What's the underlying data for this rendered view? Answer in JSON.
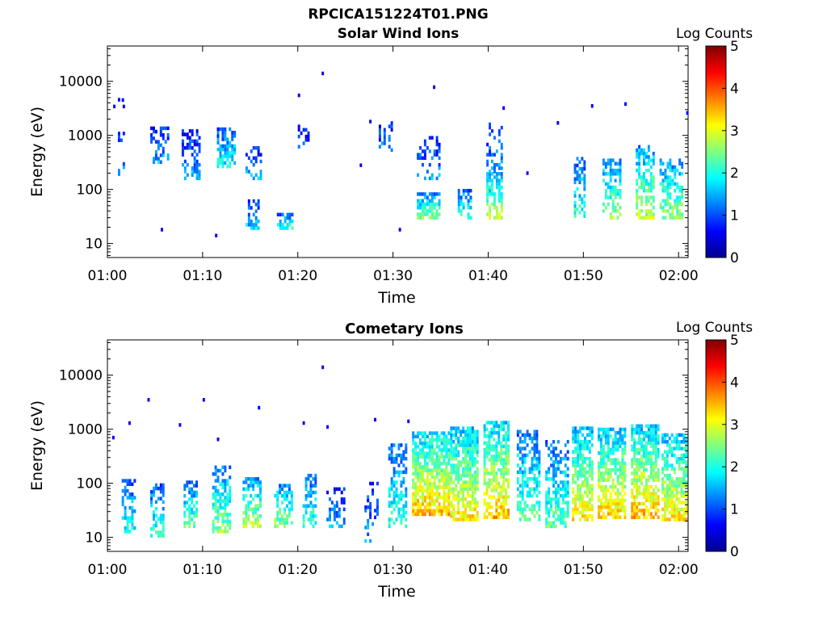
{
  "figure": {
    "title": "RPCICA151224T01.PNG"
  },
  "chart_data": [
    {
      "type": "heatmap",
      "title": "Solar Wind Ions",
      "xlabel": "Time",
      "ylabel": "Energy (eV)",
      "x_tick_labels": [
        "01:00",
        "01:10",
        "01:20",
        "01:30",
        "01:40",
        "01:50",
        "02:00"
      ],
      "y_tick_labels": [
        "10",
        "100",
        "1000",
        "10000"
      ],
      "y_scale": "log",
      "xlim_minutes": [
        0,
        61
      ],
      "ylim_ev": [
        5.5,
        45000
      ],
      "grid": false,
      "colorbar": {
        "label": "Log Counts",
        "ticks": [
          "0",
          "1",
          "2",
          "3",
          "4",
          "5"
        ],
        "range": [
          0,
          5
        ],
        "colormap": "jet"
      },
      "bursts": [
        {
          "t": [
            0.6,
            1.8
          ],
          "e": [
            180,
            4500
          ],
          "level": 0.25,
          "density": 0.15
        },
        {
          "t": [
            4.5,
            6.5
          ],
          "e": [
            300,
            1300
          ],
          "level": 0.3,
          "density": 0.45
        },
        {
          "t": [
            7.8,
            9.8
          ],
          "e": [
            150,
            1200
          ],
          "level": 0.3,
          "density": 0.5
        },
        {
          "t": [
            11.5,
            13.5
          ],
          "e": [
            250,
            1400
          ],
          "level": 0.4,
          "density": 0.6
        },
        {
          "t": [
            14.5,
            16.2
          ],
          "e": [
            150,
            600
          ],
          "level": 0.3,
          "density": 0.4
        },
        {
          "t": [
            14.5,
            15.8
          ],
          "e": [
            18,
            60
          ],
          "level": 0.35,
          "density": 0.5
        },
        {
          "t": [
            17.8,
            19.5
          ],
          "e": [
            18,
            35
          ],
          "level": 0.45,
          "density": 0.7
        },
        {
          "t": [
            20.0,
            21.2
          ],
          "e": [
            500,
            1500
          ],
          "level": 0.25,
          "density": 0.3
        },
        {
          "t": [
            28.5,
            30.0
          ],
          "e": [
            500,
            1800
          ],
          "level": 0.25,
          "density": 0.3
        },
        {
          "t": [
            32.5,
            35.0
          ],
          "e": [
            28,
            80
          ],
          "level": 0.55,
          "density": 0.7
        },
        {
          "t": [
            32.5,
            35.0
          ],
          "e": [
            150,
            900
          ],
          "level": 0.3,
          "density": 0.25
        },
        {
          "t": [
            36.8,
            38.3
          ],
          "e": [
            28,
            100
          ],
          "level": 0.45,
          "density": 0.5
        },
        {
          "t": [
            39.8,
            41.5
          ],
          "e": [
            28,
            200
          ],
          "level": 0.6,
          "density": 0.7
        },
        {
          "t": [
            39.8,
            41.5
          ],
          "e": [
            200,
            1500
          ],
          "level": 0.3,
          "density": 0.25
        },
        {
          "t": [
            49.0,
            50.2
          ],
          "e": [
            30,
            350
          ],
          "level": 0.45,
          "density": 0.5
        },
        {
          "t": [
            52.0,
            54.0
          ],
          "e": [
            28,
            350
          ],
          "level": 0.55,
          "density": 0.55
        },
        {
          "t": [
            55.5,
            57.3
          ],
          "e": [
            28,
            600
          ],
          "level": 0.6,
          "density": 0.6
        },
        {
          "t": [
            58.0,
            60.5
          ],
          "e": [
            28,
            350
          ],
          "level": 0.55,
          "density": 0.6
        }
      ],
      "points": [
        {
          "t": 22.5,
          "e": 14000,
          "level": 0.2
        },
        {
          "t": 34.2,
          "e": 7800,
          "level": 0.2
        },
        {
          "t": 1.5,
          "e": 4500,
          "level": 0.2
        },
        {
          "t": 20.0,
          "e": 5500,
          "level": 0.2
        },
        {
          "t": 27.5,
          "e": 1800,
          "level": 0.2
        },
        {
          "t": 26.5,
          "e": 280,
          "level": 0.2
        },
        {
          "t": 30.6,
          "e": 18,
          "level": 0.2
        },
        {
          "t": 5.6,
          "e": 18,
          "level": 0.2
        },
        {
          "t": 11.3,
          "e": 14,
          "level": 0.2
        },
        {
          "t": 44.0,
          "e": 200,
          "level": 0.2
        },
        {
          "t": 47.2,
          "e": 1700,
          "level": 0.2
        },
        {
          "t": 50.8,
          "e": 3500,
          "level": 0.2
        },
        {
          "t": 54.3,
          "e": 3800,
          "level": 0.2
        },
        {
          "t": 60.8,
          "e": 2600,
          "level": 0.2
        },
        {
          "t": 41.5,
          "e": 3200,
          "level": 0.2
        }
      ]
    },
    {
      "type": "heatmap",
      "title": "Cometary Ions",
      "xlabel": "Time",
      "ylabel": "Energy (eV)",
      "x_tick_labels": [
        "01:00",
        "01:10",
        "01:20",
        "01:30",
        "01:40",
        "01:50",
        "02:00"
      ],
      "y_tick_labels": [
        "10",
        "100",
        "1000",
        "10000"
      ],
      "y_scale": "log",
      "xlim_minutes": [
        0,
        61
      ],
      "ylim_ev": [
        5.5,
        45000
      ],
      "grid": false,
      "colorbar": {
        "label": "Log Counts",
        "ticks": [
          "0",
          "1",
          "2",
          "3",
          "4",
          "5"
        ],
        "range": [
          0,
          5
        ],
        "colormap": "jet"
      },
      "bursts": [
        {
          "t": [
            1.5,
            2.8
          ],
          "e": [
            12,
            120
          ],
          "level": 0.4,
          "density": 0.5
        },
        {
          "t": [
            4.5,
            6.0
          ],
          "e": [
            10,
            90
          ],
          "level": 0.45,
          "density": 0.55
        },
        {
          "t": [
            8.0,
            9.5
          ],
          "e": [
            15,
            100
          ],
          "level": 0.5,
          "density": 0.55
        },
        {
          "t": [
            11.0,
            12.8
          ],
          "e": [
            12,
            200
          ],
          "level": 0.55,
          "density": 0.6
        },
        {
          "t": [
            14.2,
            16.0
          ],
          "e": [
            15,
            120
          ],
          "level": 0.6,
          "density": 0.6
        },
        {
          "t": [
            17.5,
            19.5
          ],
          "e": [
            15,
            90
          ],
          "level": 0.55,
          "density": 0.55
        },
        {
          "t": [
            20.5,
            22.0
          ],
          "e": [
            15,
            150
          ],
          "level": 0.45,
          "density": 0.45
        },
        {
          "t": [
            23.0,
            25.0
          ],
          "e": [
            15,
            80
          ],
          "level": 0.3,
          "density": 0.3
        },
        {
          "t": [
            27.0,
            28.5
          ],
          "e": [
            8,
            100
          ],
          "level": 0.3,
          "density": 0.3
        },
        {
          "t": [
            29.5,
            31.5
          ],
          "e": [
            15,
            500
          ],
          "level": 0.45,
          "density": 0.45
        },
        {
          "t": [
            32.0,
            35.8
          ],
          "e": [
            25,
            900
          ],
          "level": 0.75,
          "density": 0.8
        },
        {
          "t": [
            36.0,
            39.0
          ],
          "e": [
            20,
            1100
          ],
          "level": 0.7,
          "density": 0.75
        },
        {
          "t": [
            39.5,
            42.2
          ],
          "e": [
            22,
            1300
          ],
          "level": 0.75,
          "density": 0.75
        },
        {
          "t": [
            43.0,
            45.5
          ],
          "e": [
            20,
            900
          ],
          "level": 0.5,
          "density": 0.55
        },
        {
          "t": [
            46.0,
            48.5
          ],
          "e": [
            15,
            600
          ],
          "level": 0.5,
          "density": 0.55
        },
        {
          "t": [
            48.8,
            51.0
          ],
          "e": [
            20,
            1000
          ],
          "level": 0.7,
          "density": 0.7
        },
        {
          "t": [
            51.5,
            54.5
          ],
          "e": [
            22,
            1000
          ],
          "level": 0.72,
          "density": 0.75
        },
        {
          "t": [
            55.0,
            58.0
          ],
          "e": [
            22,
            1100
          ],
          "level": 0.75,
          "density": 0.75
        },
        {
          "t": [
            58.2,
            61.0
          ],
          "e": [
            20,
            800
          ],
          "level": 0.7,
          "density": 0.7
        }
      ],
      "points": [
        {
          "t": 22.5,
          "e": 14000,
          "level": 0.2
        },
        {
          "t": 4.2,
          "e": 3500,
          "level": 0.2
        },
        {
          "t": 10.0,
          "e": 3500,
          "level": 0.2
        },
        {
          "t": 15.8,
          "e": 2500,
          "level": 0.2
        },
        {
          "t": 28.0,
          "e": 1500,
          "level": 0.2
        },
        {
          "t": 0.5,
          "e": 700,
          "level": 0.2
        },
        {
          "t": 2.2,
          "e": 1300,
          "level": 0.2
        },
        {
          "t": 7.5,
          "e": 1200,
          "level": 0.2
        },
        {
          "t": 11.5,
          "e": 650,
          "level": 0.2
        },
        {
          "t": 20.5,
          "e": 1300,
          "level": 0.2
        },
        {
          "t": 23.0,
          "e": 1100,
          "level": 0.2
        },
        {
          "t": 31.5,
          "e": 1400,
          "level": 0.2
        }
      ]
    }
  ]
}
